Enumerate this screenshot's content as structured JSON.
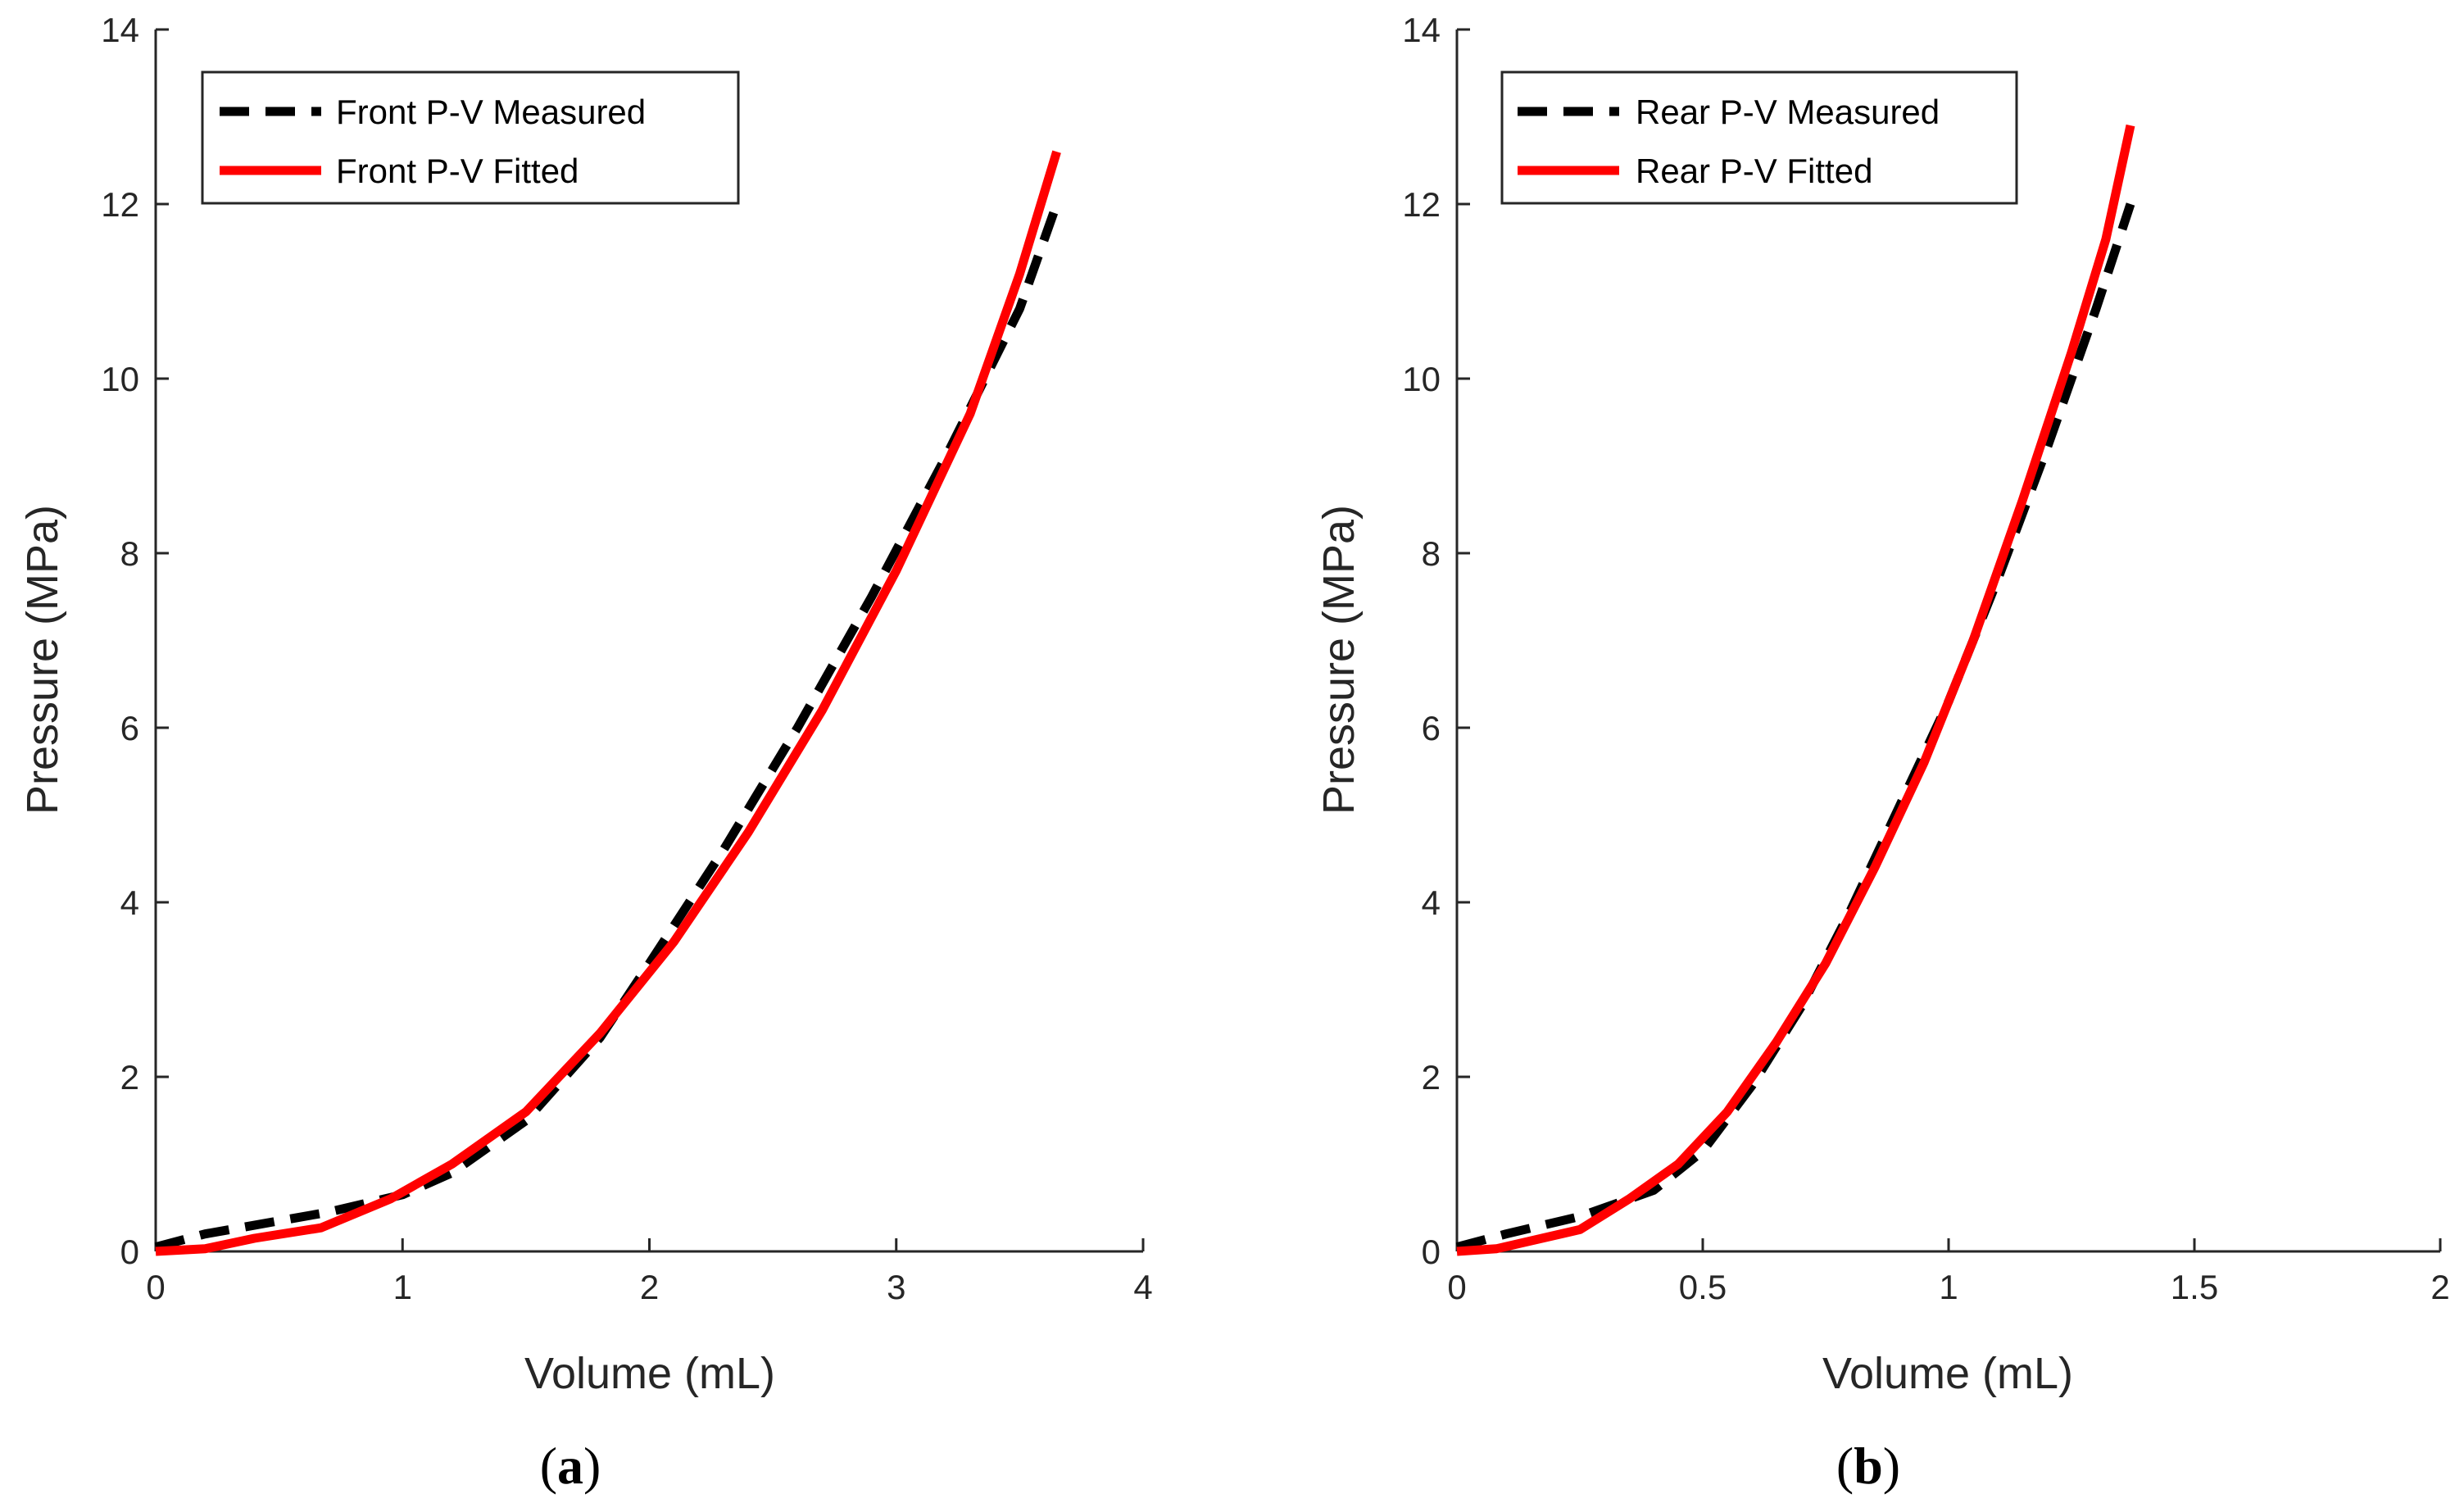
{
  "colors": {
    "measured": "#000000",
    "fitted": "#ff0000",
    "axis": "#262626"
  },
  "chart_data": [
    {
      "type": "line",
      "panel_label": "a",
      "xlabel": "Volume (mL)",
      "ylabel": "Pressure (MPa)",
      "xlim": [
        0,
        4
      ],
      "ylim": [
        0,
        14
      ],
      "xticks": [
        0,
        1,
        2,
        3,
        4
      ],
      "xtick_labels": [
        "0",
        "1",
        "2",
        "3",
        "4"
      ],
      "yticks": [
        0,
        2,
        4,
        6,
        8,
        10,
        12,
        14
      ],
      "ytick_labels": [
        "0",
        "2",
        "4",
        "6",
        "8",
        "10",
        "12",
        "14"
      ],
      "legend_position": "top-left",
      "series": [
        {
          "name": "Front P-V Measured",
          "style": "dashed",
          "color": "#000000",
          "x": [
            0,
            0.2,
            0.5,
            0.7,
            1.0,
            1.2,
            1.5,
            1.8,
            2.0,
            2.3,
            2.6,
            2.9,
            3.2,
            3.5,
            3.65
          ],
          "y": [
            0.05,
            0.2,
            0.35,
            0.45,
            0.65,
            0.9,
            1.5,
            2.45,
            3.3,
            4.6,
            6.0,
            7.5,
            9.1,
            10.8,
            12.0
          ]
        },
        {
          "name": "Front P-V Fitted",
          "style": "solid",
          "color": "#ff0000",
          "x": [
            0,
            0.2,
            0.4,
            0.67,
            0.95,
            1.2,
            1.5,
            1.8,
            2.1,
            2.4,
            2.7,
            3.0,
            3.3,
            3.5,
            3.65
          ],
          "y": [
            0.0,
            0.03,
            0.15,
            0.27,
            0.6,
            1.0,
            1.6,
            2.5,
            3.55,
            4.8,
            6.2,
            7.8,
            9.6,
            11.2,
            12.6
          ]
        }
      ]
    },
    {
      "type": "line",
      "panel_label": "b",
      "xlabel": "Volume (mL)",
      "ylabel": "Pressure (MPa)",
      "xlim": [
        0,
        2
      ],
      "ylim": [
        0,
        14
      ],
      "xticks": [
        0,
        0.5,
        1,
        1.5,
        2
      ],
      "xtick_labels": [
        "0",
        "0.5",
        "1",
        "1.5",
        "2"
      ],
      "yticks": [
        0,
        2,
        4,
        6,
        8,
        10,
        12,
        14
      ],
      "ytick_labels": [
        "0",
        "2",
        "4",
        "6",
        "8",
        "10",
        "12",
        "14"
      ],
      "legend_position": "top-left",
      "series": [
        {
          "name": "Rear P-V Measured",
          "style": "dashed",
          "color": "#000000",
          "x": [
            0,
            0.1,
            0.25,
            0.4,
            0.5,
            0.6,
            0.7,
            0.8,
            0.9,
            1.0,
            1.1,
            1.2,
            1.3,
            1.37
          ],
          "y": [
            0.05,
            0.2,
            0.4,
            0.7,
            1.15,
            1.9,
            2.8,
            3.9,
            5.1,
            6.3,
            7.7,
            9.2,
            10.8,
            12.0
          ]
        },
        {
          "name": "Rear P-V Fitted",
          "style": "solid",
          "color": "#ff0000",
          "x": [
            0,
            0.08,
            0.25,
            0.35,
            0.45,
            0.55,
            0.65,
            0.75,
            0.85,
            0.95,
            1.05,
            1.15,
            1.25,
            1.32,
            1.37
          ],
          "y": [
            0.0,
            0.03,
            0.25,
            0.6,
            1.0,
            1.6,
            2.4,
            3.3,
            4.4,
            5.6,
            7.0,
            8.6,
            10.3,
            11.6,
            12.9
          ]
        }
      ]
    }
  ]
}
